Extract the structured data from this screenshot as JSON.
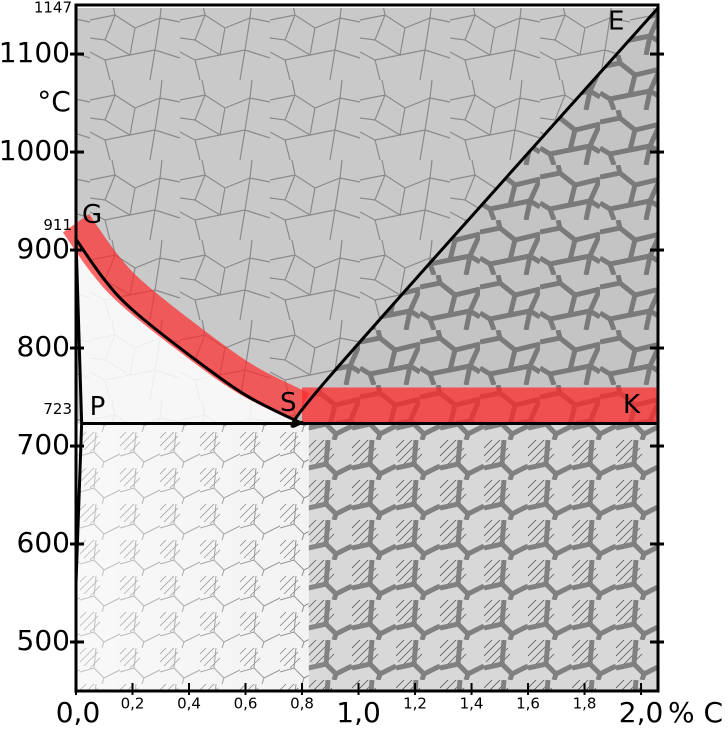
{
  "chart_data": {
    "type": "phase",
    "ylabel": "°C",
    "xlabel": "% C",
    "xlim": [
      0,
      2.06
    ],
    "ylim": [
      450,
      1147
    ],
    "yticks": [
      500,
      600,
      700,
      800,
      900,
      1000,
      1100
    ],
    "marked_temps": [
      1147,
      911,
      723
    ],
    "xticks": [
      {
        "value": 0,
        "label": "0,0"
      },
      {
        "value": 0.2,
        "label": "0,2"
      },
      {
        "value": 0.4,
        "label": "0,4"
      },
      {
        "value": 0.6,
        "label": "0,6"
      },
      {
        "value": 0.8,
        "label": "0,8"
      },
      {
        "value": 1.0,
        "label": "1,0"
      },
      {
        "value": 1.2,
        "label": "1,2"
      },
      {
        "value": 1.4,
        "label": "1,4"
      },
      {
        "value": 1.6,
        "label": "1,6"
      },
      {
        "value": 1.8,
        "label": "1,8"
      },
      {
        "value": 2.0,
        "label": "2,0"
      }
    ],
    "points": [
      {
        "label": "G",
        "x": 0,
        "y": 911
      },
      {
        "label": "P",
        "x": 0.02,
        "y": 723
      },
      {
        "label": "S",
        "x": 0.8,
        "y": 723
      },
      {
        "label": "E",
        "x": 2.06,
        "y": 1147
      },
      {
        "label": "K",
        "x": 2.0,
        "y": 723
      }
    ],
    "lines": [
      {
        "points": [
          [
            0,
            911
          ],
          [
            0.1,
            870
          ],
          [
            0.2,
            839
          ],
          [
            0.4,
            793
          ],
          [
            0.6,
            752
          ],
          [
            0.8,
            723
          ]
        ]
      },
      {
        "points": [
          [
            0,
            911
          ],
          [
            0.02,
            723
          ]
        ]
      },
      {
        "points": [
          [
            0.02,
            723
          ],
          [
            0,
            560
          ]
        ]
      },
      {
        "points": [
          [
            0.8,
            723
          ],
          [
            0.88,
            765
          ],
          [
            2.06,
            1147
          ]
        ]
      },
      {
        "points": [
          [
            0.02,
            723
          ],
          [
            2.06,
            723
          ]
        ]
      }
    ]
  }
}
